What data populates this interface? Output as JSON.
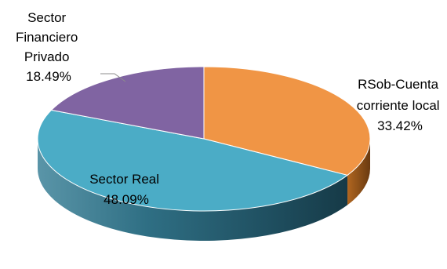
{
  "chart_data": {
    "type": "pie",
    "title": "",
    "three_d": true,
    "legend": "none",
    "slices": [
      {
        "label_lines": [
          "RSob-Cuenta",
          "corriente  local",
          "33.42%"
        ],
        "value": 33.42,
        "color": "#F09545"
      },
      {
        "label_lines": [
          "Sector Real",
          "48.09%"
        ],
        "value": 48.09,
        "color": "#4BACC6"
      },
      {
        "label_lines": [
          "Sector",
          "Financiero",
          "Privado",
          "18.49%"
        ],
        "value": 18.49,
        "color": "#8064A2"
      }
    ]
  }
}
